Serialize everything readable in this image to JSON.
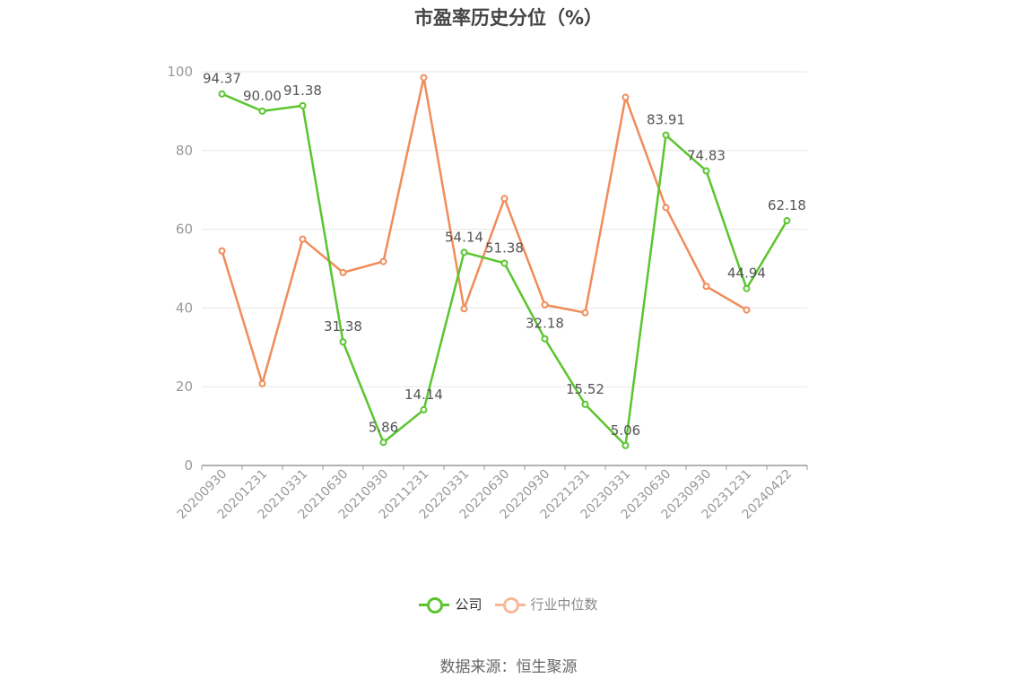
{
  "chart_data": {
    "type": "line",
    "title": "市盈率历史分位（%）",
    "categories": [
      "20200930",
      "20201231",
      "20210331",
      "20210630",
      "20210930",
      "20211231",
      "20220331",
      "20220630",
      "20220930",
      "20221231",
      "20230331",
      "20230630",
      "20230930",
      "20231231",
      "20240422"
    ],
    "series": [
      {
        "name": "公司",
        "color": "#5ac52f",
        "values": [
          94.37,
          90.0,
          91.38,
          31.38,
          5.86,
          14.14,
          54.14,
          51.38,
          32.18,
          15.52,
          5.06,
          83.91,
          74.83,
          44.94,
          62.18
        ],
        "labels": [
          "94.37",
          "90.00",
          "91.38",
          "31.38",
          "5.86",
          "14.14",
          "54.14",
          "51.38",
          "32.18",
          "15.52",
          "5.06",
          "83.91",
          "74.83",
          "44.94",
          "62.18"
        ]
      },
      {
        "name": "行业中位数",
        "color": "#f08c5a",
        "values": [
          54.5,
          20.8,
          57.5,
          49.0,
          51.8,
          98.5,
          39.8,
          67.8,
          40.8,
          38.8,
          93.5,
          65.5,
          45.5,
          39.5,
          null
        ]
      }
    ],
    "y_ticks": [
      "0",
      "20",
      "40",
      "60",
      "80",
      "100"
    ],
    "ylim": [
      0,
      100
    ],
    "grid": true,
    "legend_position": "bottom"
  },
  "source": "数据来源：恒生聚源",
  "colors": {
    "axis": "#999999",
    "grid": "#e6e6e6",
    "label": "#555555",
    "tick": "#999999",
    "legend_inactive": "#f7b89a"
  }
}
